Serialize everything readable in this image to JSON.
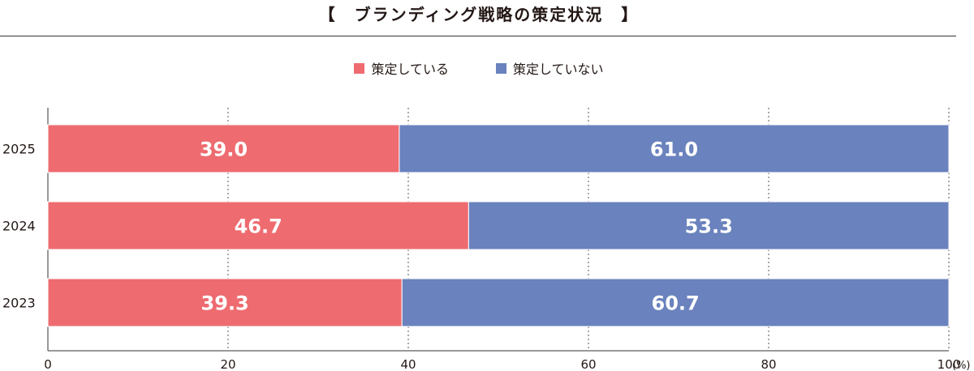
{
  "chart_data": {
    "type": "bar",
    "orientation": "horizontal",
    "stacked": true,
    "title": "【　ブランディング戦略の策定状況　】",
    "categories": [
      "2025",
      "2024",
      "2023"
    ],
    "series": [
      {
        "name": "策定している",
        "color": "#ee6b70",
        "values": [
          39.0,
          46.7,
          39.3
        ],
        "labels": [
          "39.0",
          "46.7",
          "39.3"
        ]
      },
      {
        "name": "策定していない",
        "color": "#6a82bd",
        "values": [
          61.0,
          53.3,
          60.7
        ],
        "labels": [
          "61.0",
          "53.3",
          "60.7"
        ]
      }
    ],
    "xlim": [
      0,
      100
    ],
    "xticks": [
      0,
      20,
      40,
      60,
      80,
      100
    ],
    "xtick_labels": [
      "0",
      "20",
      "40",
      "60",
      "80",
      "100"
    ],
    "x_unit": "(%)",
    "grid": "vertical dotted",
    "legend_position": "top-center"
  }
}
